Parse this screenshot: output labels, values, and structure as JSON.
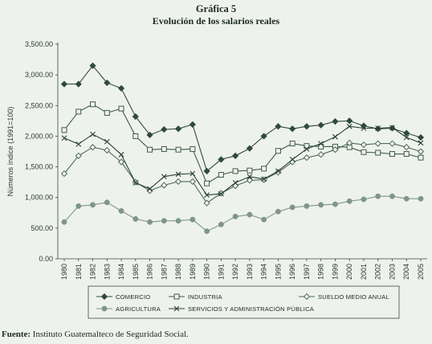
{
  "chart_data": {
    "type": "line",
    "title": "Gráfica 5",
    "subtitle": "Evolución de los salarios reales",
    "ylabel": "Números índice (1991=100)",
    "xlabel": "",
    "ylim": [
      0,
      3500
    ],
    "yticks": [
      "0.00",
      "500.00",
      "1,000.00",
      "1,500.00",
      "2,000.00",
      "2,500.00",
      "3,000.00",
      "3,500.00"
    ],
    "x": [
      1980,
      1981,
      1982,
      1983,
      1984,
      1985,
      1986,
      1987,
      1988,
      1989,
      1990,
      1991,
      1992,
      1993,
      1994,
      1995,
      1996,
      1997,
      1998,
      1999,
      2000,
      2001,
      2002,
      2003,
      2004,
      2005
    ],
    "grid": false,
    "legend_position": "bottom",
    "series": [
      {
        "name": "COMERCIO",
        "marker": "diamond-filled",
        "color": "#2f4a3a",
        "values": [
          2850,
          2850,
          3150,
          2870,
          2780,
          2320,
          2020,
          2110,
          2120,
          2190,
          1430,
          1620,
          1680,
          1800,
          2000,
          2160,
          2120,
          2160,
          2180,
          2240,
          2250,
          2170,
          2120,
          2130,
          2050,
          1980
        ]
      },
      {
        "name": "INDUSTRIA",
        "marker": "square-open",
        "color": "#3e5a48",
        "values": [
          2100,
          2400,
          2520,
          2380,
          2450,
          2000,
          1780,
          1790,
          1780,
          1790,
          1230,
          1370,
          1430,
          1440,
          1470,
          1760,
          1880,
          1840,
          1830,
          1830,
          1820,
          1740,
          1730,
          1710,
          1710,
          1650
        ]
      },
      {
        "name": "SUELDO MEDIO ANUAL",
        "marker": "diamond-open",
        "color": "#4f6b58",
        "values": [
          1390,
          1680,
          1820,
          1770,
          1580,
          1250,
          1110,
          1200,
          1260,
          1260,
          910,
          1070,
          1190,
          1280,
          1290,
          1410,
          1580,
          1650,
          1700,
          1780,
          1890,
          1860,
          1880,
          1880,
          1820,
          1750
        ]
      },
      {
        "name": "AGRICULTURA",
        "marker": "circle-filled",
        "color": "#7f968a",
        "values": [
          600,
          860,
          880,
          920,
          780,
          650,
          600,
          620,
          620,
          640,
          450,
          560,
          690,
          720,
          640,
          770,
          840,
          860,
          880,
          890,
          940,
          970,
          1020,
          1020,
          980,
          980
        ]
      },
      {
        "name": "SERVICIOS Y ADMINISTRACIÓN PÚBLICA",
        "marker": "x",
        "color": "#2a4035",
        "values": [
          1970,
          1870,
          2030,
          1910,
          1700,
          1240,
          1140,
          1340,
          1380,
          1390,
          1040,
          1060,
          1240,
          1340,
          1300,
          1430,
          1620,
          1790,
          1880,
          1990,
          2160,
          2130,
          2130,
          2140,
          1980,
          1890
        ]
      }
    ]
  },
  "footer": {
    "label": "Fuente:",
    "text": " Instituto Guatemalteco de Seguridad Social."
  }
}
